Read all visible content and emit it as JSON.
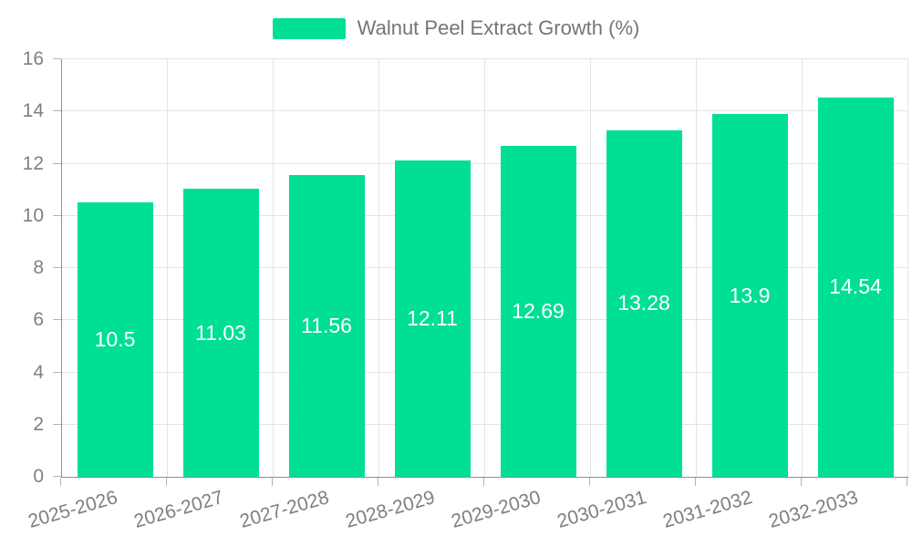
{
  "chart_data": {
    "type": "bar",
    "title": "Walnut Peel Extract Growth (%)",
    "legend_entries": [
      "Walnut Peel Extract Growth (%)"
    ],
    "categories": [
      "2025-2026",
      "2026-2027",
      "2027-2028",
      "2028-2029",
      "2029-2030",
      "2030-2031",
      "2031-2032",
      "2032-2033"
    ],
    "values": [
      10.5,
      11.03,
      11.56,
      12.11,
      12.69,
      13.28,
      13.9,
      14.54
    ],
    "value_labels": [
      "10.5",
      "11.03",
      "11.56",
      "12.11",
      "12.69",
      "13.28",
      "13.9",
      "14.54"
    ],
    "xlabel": "",
    "ylabel": "",
    "ylim": [
      0,
      16
    ],
    "y_ticks": [
      0,
      2,
      4,
      6,
      8,
      10,
      12,
      14,
      16
    ],
    "grid": "both",
    "legend_position": "top-center",
    "x_label_rotation_deg": -16,
    "colors": {
      "bar": "#00DF94",
      "bar_label": "#FFFFFF",
      "grid": "#E4E4E4",
      "axis": "#8F8F8F",
      "tick": "#B3B3B3",
      "text": "#808080",
      "background": "#FFFFFF"
    }
  }
}
